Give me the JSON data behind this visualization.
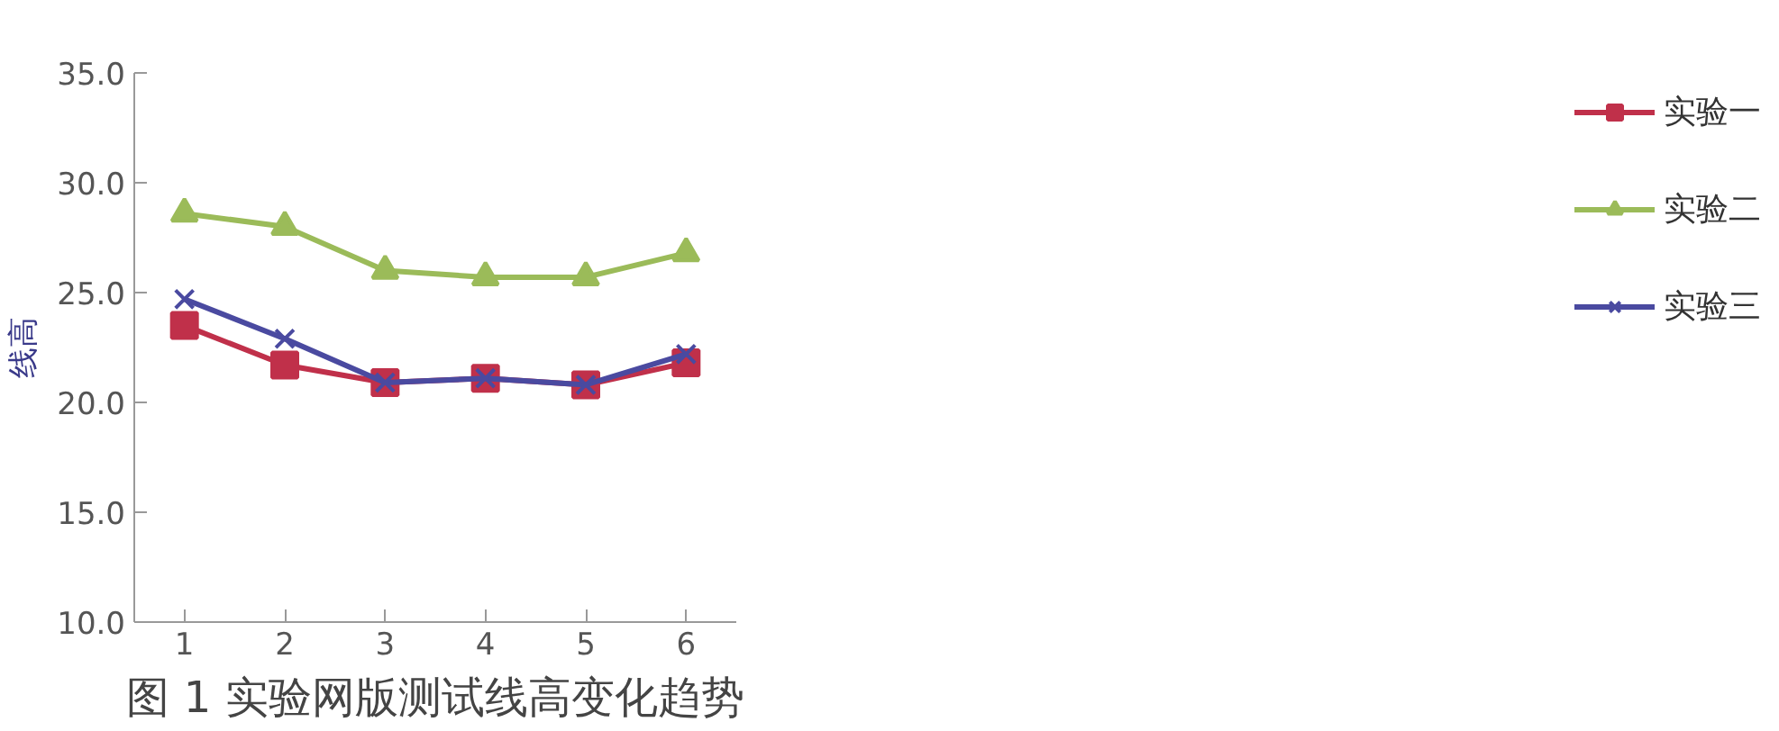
{
  "chart_data": {
    "type": "line",
    "title": "图 1 实验网版测试线高变化趋势",
    "ylabel": "线高",
    "categories": [
      "1",
      "2",
      "3",
      "4",
      "5",
      "6"
    ],
    "series": [
      {
        "name": "实验一",
        "color": "#c0304a",
        "marker": "square",
        "values": [
          23.5,
          21.7,
          20.9,
          21.1,
          20.8,
          21.8
        ]
      },
      {
        "name": "实验二",
        "color": "#9bbb59",
        "marker": "triangle",
        "values": [
          28.6,
          28.0,
          26.0,
          25.7,
          25.7,
          26.8
        ]
      },
      {
        "name": "实验三",
        "color": "#4a4aa0",
        "marker": "cross",
        "values": [
          24.7,
          22.9,
          20.9,
          21.1,
          20.8,
          22.2
        ]
      }
    ],
    "ylim": [
      10,
      35
    ],
    "yticks": [
      {
        "value": 10,
        "label": "10.0"
      },
      {
        "value": 15,
        "label": "15.0"
      },
      {
        "value": 20,
        "label": "20.0"
      },
      {
        "value": 25,
        "label": "25.0"
      },
      {
        "value": 30,
        "label": "30.0"
      },
      {
        "value": 35,
        "label": "35.0"
      }
    ],
    "grid": false,
    "legend": "right",
    "line_style": "solid"
  }
}
